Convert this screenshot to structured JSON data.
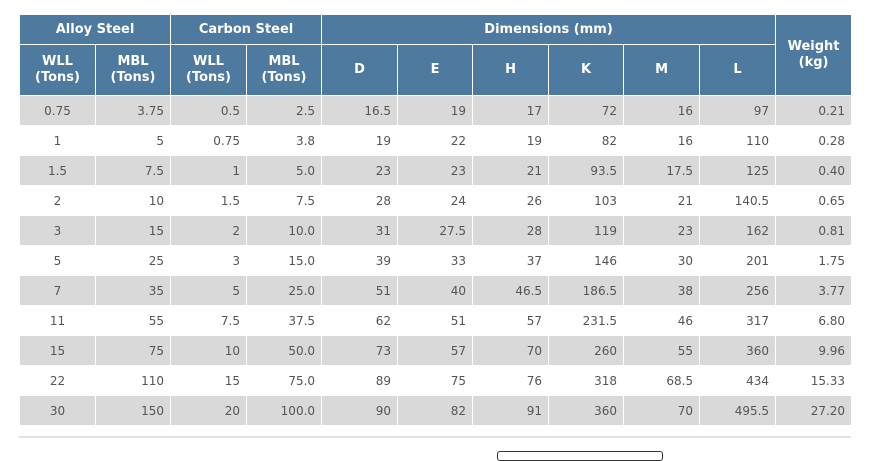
{
  "table": {
    "group_headers": {
      "alloy": "Alloy Steel",
      "carbon": "Carbon Steel",
      "dimensions": "Dimensions (mm)",
      "weight_line1": "Weight",
      "weight_line2": "(kg)"
    },
    "sub_headers": [
      {
        "line1": "WLL",
        "line2": "(Tons)"
      },
      {
        "line1": "MBL",
        "line2": "(Tons)"
      },
      {
        "line1": "WLL",
        "line2": "(Tons)"
      },
      {
        "line1": "MBL",
        "line2": "(Tons)"
      },
      {
        "line1": "D",
        "line2": ""
      },
      {
        "line1": "E",
        "line2": ""
      },
      {
        "line1": "H",
        "line2": ""
      },
      {
        "line1": "K",
        "line2": ""
      },
      {
        "line1": "M",
        "line2": ""
      },
      {
        "line1": "L",
        "line2": ""
      }
    ],
    "rows": [
      [
        "0.75",
        "3.75",
        "0.5",
        "2.5",
        "16.5",
        "19",
        "17",
        "72",
        "16",
        "97",
        "0.21"
      ],
      [
        "1",
        "5",
        "0.75",
        "3.8",
        "19",
        "22",
        "19",
        "82",
        "16",
        "110",
        "0.28"
      ],
      [
        "1.5",
        "7.5",
        "1",
        "5.0",
        "23",
        "23",
        "21",
        "93.5",
        "17.5",
        "125",
        "0.40"
      ],
      [
        "2",
        "10",
        "1.5",
        "7.5",
        "28",
        "24",
        "26",
        "103",
        "21",
        "140.5",
        "0.65"
      ],
      [
        "3",
        "15",
        "2",
        "10.0",
        "31",
        "27.5",
        "28",
        "119",
        "23",
        "162",
        "0.81"
      ],
      [
        "5",
        "25",
        "3",
        "15.0",
        "39",
        "33",
        "37",
        "146",
        "30",
        "201",
        "1.75"
      ],
      [
        "7",
        "35",
        "5",
        "25.0",
        "51",
        "40",
        "46.5",
        "186.5",
        "38",
        "256",
        "3.77"
      ],
      [
        "11",
        "55",
        "7.5",
        "37.5",
        "62",
        "51",
        "57",
        "231.5",
        "46",
        "317",
        "6.80"
      ],
      [
        "15",
        "75",
        "10",
        "50.0",
        "73",
        "57",
        "70",
        "260",
        "55",
        "360",
        "9.96"
      ],
      [
        "22",
        "110",
        "15",
        "75.0",
        "89",
        "75",
        "76",
        "318",
        "68.5",
        "434",
        "15.33"
      ],
      [
        "30",
        "150",
        "20",
        "100.0",
        "90",
        "82",
        "91",
        "360",
        "70",
        "495.5",
        "27.20"
      ]
    ]
  },
  "colors": {
    "header_bg": "#4e7aa0",
    "header_text": "#ffffff",
    "row_shade": "#d9d9d9",
    "cell_text": "#555555"
  }
}
